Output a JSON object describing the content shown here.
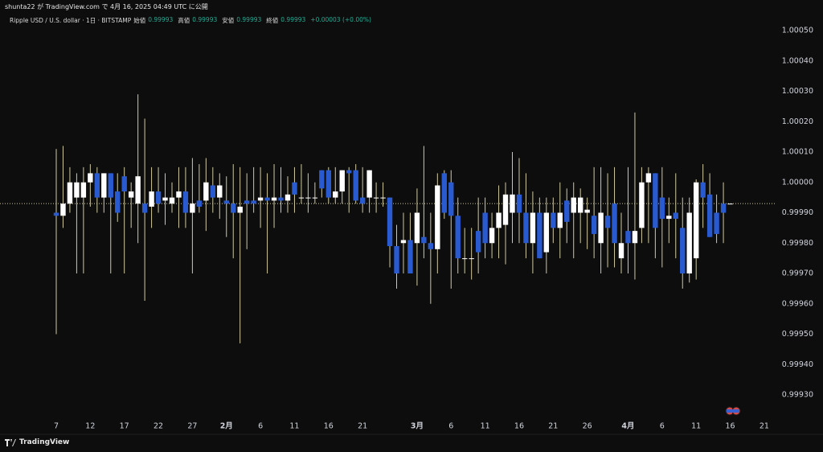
{
  "header": "shunta22 が TradingView.com で 4月 16, 2025 04:49 UTC に公開",
  "footer": "TradingView",
  "chart_data": {
    "type": "candlestick",
    "symbol": "Ripple USD / U.S. dollar · 1日 · BITSTAMP",
    "legend_labels": {
      "open": "始値",
      "high": "高値",
      "low": "安値",
      "close": "終値"
    },
    "change": "+0.00003 (+0.00%)",
    "up_color": "#ffffff",
    "down_color": "#2a5ad0",
    "wick_color": "#cfc9a0",
    "change_color": "#22ab94",
    "grid": false,
    "x": [
      "01-07",
      "01-08",
      "01-09",
      "01-10",
      "01-11",
      "01-12",
      "01-13",
      "01-14",
      "01-15",
      "01-16",
      "01-17",
      "01-18",
      "01-19",
      "01-20",
      "01-21",
      "01-22",
      "01-23",
      "01-24",
      "01-25",
      "01-26",
      "01-27",
      "01-28",
      "01-29",
      "01-30",
      "01-31",
      "02-01",
      "02-02",
      "02-03",
      "02-04",
      "02-05",
      "02-06",
      "02-07",
      "02-08",
      "02-09",
      "02-10",
      "02-11",
      "02-12",
      "02-13",
      "02-14",
      "02-15",
      "02-16",
      "02-17",
      "02-18",
      "02-19",
      "02-20",
      "02-21",
      "02-22",
      "02-23",
      "02-24",
      "02-25",
      "02-26",
      "02-27",
      "02-28",
      "03-01",
      "03-02",
      "03-03",
      "03-04",
      "03-05",
      "03-06",
      "03-07",
      "03-08",
      "03-09",
      "03-10",
      "03-11",
      "03-12",
      "03-13",
      "03-14",
      "03-15",
      "03-16",
      "03-17",
      "03-18",
      "03-19",
      "03-20",
      "03-21",
      "03-22",
      "03-23",
      "03-24",
      "03-25",
      "03-26",
      "03-27",
      "03-28",
      "03-29",
      "03-30",
      "03-31",
      "04-01",
      "04-02",
      "04-03",
      "04-04",
      "04-05",
      "04-06",
      "04-07",
      "04-08",
      "04-09",
      "04-10",
      "04-11",
      "04-12",
      "04-13",
      "04-14",
      "04-15",
      "04-16"
    ],
    "open": [
      0.9999,
      0.99989,
      0.99993,
      0.99995,
      0.99995,
      1,
      1.00003,
      0.99995,
      1.00003,
      0.99997,
      1.00002,
      0.99995,
      0.99993,
      0.99993,
      0.99992,
      0.99997,
      0.99994,
      0.99993,
      0.99995,
      0.99997,
      0.9999,
      0.99994,
      0.99994,
      0.99999,
      0.99995,
      0.99994,
      0.99993,
      0.9999,
      0.99994,
      0.99994,
      0.99994,
      0.99995,
      0.99994,
      0.99995,
      0.99994,
      1,
      0.99995,
      0.99995,
      0.99995,
      1.00004,
      1.00004,
      0.99995,
      0.99997,
      1.00004,
      1.00004,
      0.99995,
      0.99995,
      0.99995,
      0.99995,
      0.99995,
      0.99979,
      0.9998,
      0.99981,
      0.9998,
      0.99982,
      0.9998,
      0.99978,
      1.00003,
      1,
      0.99989,
      0.99975,
      0.99975,
      0.99984,
      0.9999,
      0.9998,
      0.99985,
      0.99986,
      0.9999,
      0.99996,
      0.9999,
      0.9998,
      0.9999,
      0.99977,
      0.9999,
      0.99985,
      0.99994,
      0.9999,
      0.9999,
      0.9999,
      0.99989,
      0.9998,
      0.99989,
      0.99993,
      0.99975,
      0.99984,
      0.9998,
      0.99985,
      1,
      1.00003,
      0.99995,
      0.99988,
      0.9999,
      0.99985,
      0.9997,
      0.99975,
      1,
      0.99996,
      0.9999,
      0.99993,
      0.99993
    ],
    "high": [
      1.00011,
      1.00012,
      1.00005,
      1.00003,
      1.00005,
      1.00006,
      1.00005,
      1.00003,
      1.00003,
      1.00003,
      1.00005,
      1,
      1.00029,
      1.00021,
      1.00005,
      1.00005,
      1.00003,
      1,
      1.00005,
      1.00005,
      1.00008,
      1.00006,
      1.00008,
      1.00005,
      1.00003,
      1.00002,
      1.00006,
      1.00005,
      1.00003,
      1.00005,
      1.00005,
      1.00003,
      1.00006,
      1.00005,
      1.00002,
      1.00005,
      1.00006,
      1.00003,
      1,
      1.00004,
      1.00005,
      1.00005,
      1.00004,
      1.00005,
      1.00006,
      1.00005,
      1.00004,
      1,
      1,
      0.99995,
      0.99986,
      0.9999,
      0.9999,
      0.99998,
      1.00012,
      0.9999,
      1.00003,
      1.00004,
      1.00004,
      0.99995,
      0.99985,
      0.99985,
      0.99995,
      0.99995,
      0.9999,
      0.99999,
      1,
      1.0001,
      1.00008,
      1.00003,
      0.99997,
      0.99995,
      0.99995,
      0.99995,
      1,
      0.99998,
      1,
      0.99998,
      0.99995,
      1.00005,
      1.00005,
      1.00003,
      1.00005,
      0.9999,
      1.00005,
      1.00023,
      1.00005,
      1.00005,
      1.00003,
      1.00005,
      0.99995,
      1.00003,
      0.99995,
      0.99995,
      1.00001,
      1.00006,
      1.00003,
      0.99996,
      1,
      0.99993
    ],
    "low": [
      0.9995,
      0.99985,
      0.9999,
      0.9997,
      0.9997,
      0.99992,
      0.9999,
      0.9999,
      0.9997,
      0.99987,
      0.9997,
      0.99985,
      0.9998,
      0.99961,
      0.99985,
      0.9999,
      0.99986,
      0.9999,
      0.99985,
      0.99985,
      0.9997,
      0.9999,
      0.99984,
      0.9999,
      0.99988,
      0.99982,
      0.99975,
      0.99947,
      0.99978,
      0.9999,
      0.99985,
      0.9997,
      0.99985,
      0.9999,
      0.9999,
      0.9999,
      0.99993,
      0.9999,
      0.99993,
      0.99995,
      0.99993,
      0.99993,
      0.99993,
      0.9999,
      0.99993,
      0.9999,
      0.9999,
      0.9999,
      0.99992,
      0.99972,
      0.99965,
      0.9997,
      0.9997,
      0.99966,
      0.99975,
      0.9996,
      0.9997,
      0.99988,
      0.99965,
      0.9997,
      0.9997,
      0.99968,
      0.9997,
      0.99975,
      0.99975,
      0.99975,
      0.99973,
      0.9998,
      0.9998,
      0.99975,
      0.9997,
      0.99975,
      0.9997,
      0.9998,
      0.99975,
      0.9998,
      0.99975,
      0.9998,
      0.99978,
      0.99975,
      0.9997,
      0.99972,
      0.99972,
      0.9997,
      0.9997,
      0.99968,
      0.9998,
      0.9998,
      0.99975,
      0.99972,
      0.9998,
      0.99975,
      0.99965,
      0.99967,
      0.99968,
      0.99985,
      0.99982,
      0.9998,
      0.9998,
      0.99993
    ],
    "close": [
      0.99989,
      0.99993,
      1,
      1,
      1,
      1.00003,
      0.99995,
      1.00003,
      0.99995,
      0.9999,
      0.99997,
      0.99997,
      1.00002,
      0.9999,
      0.99997,
      0.99993,
      0.99995,
      0.99995,
      0.99997,
      0.9999,
      0.99993,
      0.99992,
      1,
      0.99995,
      0.99999,
      0.99993,
      0.9999,
      0.99992,
      0.99993,
      0.99993,
      0.99995,
      0.99994,
      0.99995,
      0.99994,
      0.99996,
      0.99996,
      0.99995,
      0.99995,
      0.99995,
      0.99998,
      0.99995,
      0.99997,
      1.00004,
      1.00003,
      0.99994,
      0.99993,
      1.00004,
      0.99995,
      0.99995,
      0.99979,
      0.9997,
      0.99981,
      0.9997,
      0.9999,
      0.9998,
      0.99978,
      0.99999,
      0.9999,
      0.99989,
      0.99975,
      0.99975,
      0.99975,
      0.99977,
      0.9998,
      0.99985,
      0.9999,
      0.99996,
      0.99996,
      0.9999,
      0.9998,
      0.9999,
      0.99975,
      0.9999,
      0.99985,
      0.9999,
      0.99987,
      0.99995,
      0.99995,
      0.99991,
      0.99983,
      0.9999,
      0.99985,
      0.9998,
      0.9998,
      0.9998,
      0.99984,
      1,
      1.00003,
      0.99985,
      0.99988,
      0.99989,
      0.99988,
      0.9997,
      0.9999,
      1,
      0.99995,
      0.99982,
      0.99983,
      0.9999,
      0.99993
    ],
    "ylim": [
      0.9993,
      1.0005
    ],
    "yticks": [
      {
        "value": 1.0005,
        "label": "1.00050"
      },
      {
        "value": 1.0004,
        "label": "1.00040"
      },
      {
        "value": 1.0003,
        "label": "1.00030"
      },
      {
        "value": 1.0002,
        "label": "1.00020"
      },
      {
        "value": 1.0001,
        "label": "1.00010"
      },
      {
        "value": 1,
        "label": "1.00000"
      },
      {
        "value": 0.9999,
        "label": "0.99990"
      },
      {
        "value": 0.9998,
        "label": "0.99980"
      },
      {
        "value": 0.9997,
        "label": "0.99970"
      },
      {
        "value": 0.9996,
        "label": "0.99960"
      },
      {
        "value": 0.9995,
        "label": "0.99950"
      },
      {
        "value": 0.9994,
        "label": "0.99940"
      },
      {
        "value": 0.9993,
        "label": "0.99930"
      }
    ],
    "xticks": [
      {
        "value": "01-07",
        "label": "7"
      },
      {
        "value": "01-12",
        "label": "12"
      },
      {
        "value": "01-17",
        "label": "17"
      },
      {
        "value": "01-22",
        "label": "22"
      },
      {
        "value": "01-27",
        "label": "27"
      },
      {
        "value": "02-01",
        "label": "2月"
      },
      {
        "value": "02-06",
        "label": "6"
      },
      {
        "value": "02-11",
        "label": "11"
      },
      {
        "value": "02-16",
        "label": "16"
      },
      {
        "value": "02-21",
        "label": "21"
      },
      {
        "value": "03-01",
        "label": "3月"
      },
      {
        "value": "03-06",
        "label": "6"
      },
      {
        "value": "03-11",
        "label": "11"
      },
      {
        "value": "03-16",
        "label": "16"
      },
      {
        "value": "03-21",
        "label": "21"
      },
      {
        "value": "03-26",
        "label": "26"
      },
      {
        "value": "04-01",
        "label": "4月"
      },
      {
        "value": "04-06",
        "label": "6"
      },
      {
        "value": "04-11",
        "label": "11"
      },
      {
        "value": "04-16",
        "label": "16"
      },
      {
        "value": "04-21",
        "label": "21"
      }
    ]
  }
}
